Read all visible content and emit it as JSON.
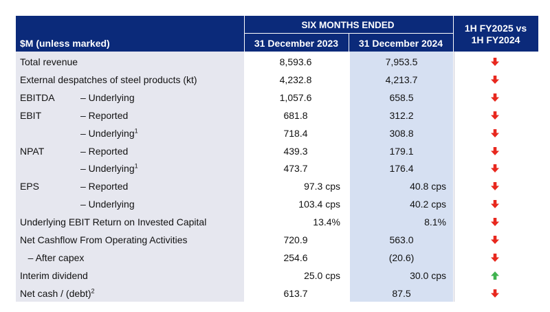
{
  "header": {
    "period": "SIX MONTHS ENDED",
    "row_label": "$M (unless marked)",
    "col1": "31 December 2023",
    "col2": "31 December 2024",
    "compare_line1": "1H FY2025 vs",
    "compare_line2": "1H FY2024"
  },
  "colors": {
    "header_bg": "#0b2a7a",
    "down_arrow": "#e8281e",
    "up_arrow": "#3fb34f"
  },
  "rows": [
    {
      "label": "Total revenue",
      "sub": "",
      "v1": "8,593.6",
      "v2": "7,953.5",
      "dir": "down"
    },
    {
      "label": "External despatches of steel products (kt)",
      "sub": "",
      "v1": "4,232.8",
      "v2": "4,213.7",
      "dir": "down"
    },
    {
      "label": "EBITDA",
      "sub": "– Underlying",
      "v1": "1,057.6",
      "v2": "658.5",
      "dir": "down"
    },
    {
      "label": "EBIT",
      "sub": "– Reported",
      "v1": "681.8",
      "v2": "312.2",
      "dir": "down"
    },
    {
      "label": "",
      "sub": "– Underlying",
      "sup": "1",
      "v1": "718.4",
      "v2": "308.8",
      "dir": "down"
    },
    {
      "label": "NPAT",
      "sub": "– Reported",
      "v1": "439.3",
      "v2": "179.1",
      "dir": "down"
    },
    {
      "label": "",
      "sub": "– Underlying",
      "sup": "1",
      "v1": "473.7",
      "v2": "176.4",
      "dir": "down"
    },
    {
      "label": "EPS",
      "sub": "– Reported",
      "v1": "97.3 cps",
      "v2": "40.8 cps",
      "dir": "down"
    },
    {
      "label": "",
      "sub": "– Underlying",
      "v1": "103.4 cps",
      "v2": "40.2 cps",
      "dir": "down"
    },
    {
      "label": "Underlying EBIT Return on Invested Capital",
      "sub": "",
      "v1": "13.4%",
      "v2": "8.1%",
      "dir": "down"
    },
    {
      "label": "Net Cashflow From Operating Activities",
      "sub": "",
      "v1": "720.9",
      "v2": "563.0",
      "dir": "down"
    },
    {
      "label": "   – After capex",
      "sub": "",
      "v1": "254.6",
      "v2": "(20.6)",
      "dir": "down"
    },
    {
      "label": "Interim dividend",
      "sub": "",
      "v1": "25.0 cps",
      "v2": "30.0 cps",
      "dir": "up"
    },
    {
      "label": "Net cash / (debt)",
      "sub": "",
      "labelsup": "2",
      "v1": "613.7",
      "v2": "87.5",
      "dir": "down"
    }
  ]
}
